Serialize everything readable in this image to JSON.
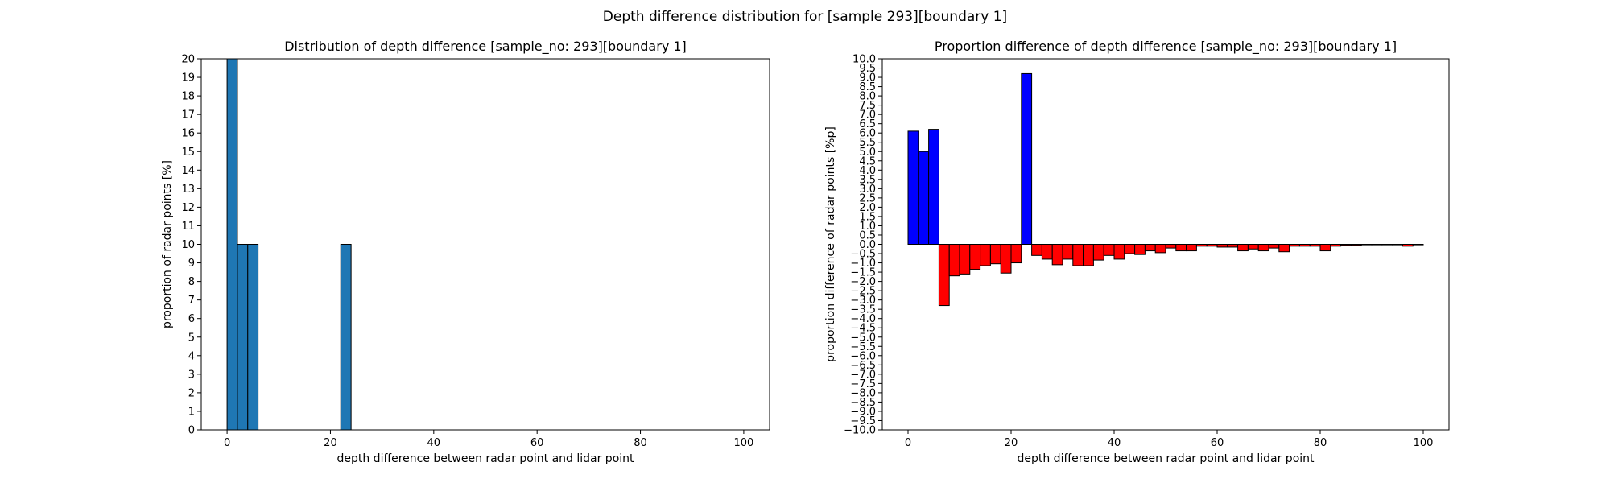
{
  "figure": {
    "title": "Depth difference distribution for [sample 293][boundary 1]"
  },
  "chart_data": [
    {
      "type": "bar",
      "title": "Distribution of depth difference [sample_no: 293][boundary 1]",
      "xlabel": "depth difference between radar point and lidar point",
      "ylabel": "proportion of radar points [%]",
      "xlim": [
        -5,
        105
      ],
      "ylim": [
        0,
        20
      ],
      "xticks": [
        0,
        20,
        40,
        60,
        80,
        100
      ],
      "xtick_labels": [
        "0",
        "20",
        "40",
        "60",
        "80",
        "100"
      ],
      "yticks": [
        0,
        1,
        2,
        3,
        4,
        5,
        6,
        7,
        8,
        9,
        10,
        11,
        12,
        13,
        14,
        15,
        16,
        17,
        18,
        19,
        20
      ],
      "ytick_labels": [
        "0",
        "1",
        "2",
        "3",
        "4",
        "5",
        "6",
        "7",
        "8",
        "9",
        "10",
        "11",
        "12",
        "13",
        "14",
        "15",
        "16",
        "17",
        "18",
        "19",
        "20"
      ],
      "bin_width": 2,
      "bar_color": "#1f77b4",
      "edge_color": "#000000",
      "grid": false,
      "bars": [
        {
          "x": 0,
          "value": 20
        },
        {
          "x": 2,
          "value": 10
        },
        {
          "x": 4,
          "value": 10
        },
        {
          "x": 22,
          "value": 10
        }
      ]
    },
    {
      "type": "bar",
      "title": "Proportion difference of depth difference [sample_no: 293][boundary 1]",
      "xlabel": "depth difference between radar point and lidar point",
      "ylabel": "proportion difference of radar points [%p]",
      "xlim": [
        -5,
        105
      ],
      "ylim": [
        -10,
        10
      ],
      "xticks": [
        0,
        20,
        40,
        60,
        80,
        100
      ],
      "xtick_labels": [
        "0",
        "20",
        "40",
        "60",
        "80",
        "100"
      ],
      "yticks": [
        10,
        9.5,
        9,
        8.5,
        8,
        7.5,
        7,
        6.5,
        6,
        5.5,
        5,
        4.5,
        4,
        3.5,
        3,
        2.5,
        2,
        1.5,
        1,
        0.5,
        0,
        -0.5,
        -1,
        -1.5,
        -2,
        -2.5,
        -3,
        -3.5,
        -4,
        -4.5,
        -5,
        -5.5,
        -6,
        -6.5,
        -7,
        -7.5,
        -8,
        -8.5,
        -9,
        -9.5,
        -10
      ],
      "ytick_labels": [
        "10.0",
        "9.5",
        "9.0",
        "8.5",
        "8.0",
        "7.5",
        "7.0",
        "6.5",
        "6.0",
        "5.5",
        "5.0",
        "4.5",
        "4.0",
        "3.5",
        "3.0",
        "2.5",
        "2.0",
        "1.5",
        "1.0",
        "0.5",
        "0.0",
        "−0.5",
        "−1.0",
        "−1.5",
        "−2.0",
        "−2.5",
        "−3.0",
        "−3.5",
        "−4.0",
        "−4.5",
        "−5.0",
        "−5.5",
        "−6.0",
        "−6.5",
        "−7.0",
        "−7.5",
        "−8.0",
        "−8.5",
        "−9.0",
        "−9.5",
        "−10.0"
      ],
      "bin_width": 2,
      "positive_color": "#0000ff",
      "negative_color": "#ff0000",
      "edge_color": "#000000",
      "grid": false,
      "bars": [
        {
          "x": 0,
          "value": 6.1
        },
        {
          "x": 2,
          "value": 5.0
        },
        {
          "x": 4,
          "value": 6.2
        },
        {
          "x": 6,
          "value": -3.3
        },
        {
          "x": 8,
          "value": -1.7
        },
        {
          "x": 10,
          "value": -1.6
        },
        {
          "x": 12,
          "value": -1.35
        },
        {
          "x": 14,
          "value": -1.15
        },
        {
          "x": 16,
          "value": -1.05
        },
        {
          "x": 18,
          "value": -1.55
        },
        {
          "x": 20,
          "value": -1.0
        },
        {
          "x": 22,
          "value": 9.2
        },
        {
          "x": 24,
          "value": -0.6
        },
        {
          "x": 26,
          "value": -0.8
        },
        {
          "x": 28,
          "value": -1.1
        },
        {
          "x": 30,
          "value": -0.8
        },
        {
          "x": 32,
          "value": -1.15
        },
        {
          "x": 34,
          "value": -1.15
        },
        {
          "x": 36,
          "value": -0.85
        },
        {
          "x": 38,
          "value": -0.6
        },
        {
          "x": 40,
          "value": -0.8
        },
        {
          "x": 42,
          "value": -0.5
        },
        {
          "x": 44,
          "value": -0.55
        },
        {
          "x": 46,
          "value": -0.35
        },
        {
          "x": 48,
          "value": -0.45
        },
        {
          "x": 50,
          "value": -0.2
        },
        {
          "x": 52,
          "value": -0.35
        },
        {
          "x": 54,
          "value": -0.35
        },
        {
          "x": 56,
          "value": -0.1
        },
        {
          "x": 58,
          "value": -0.1
        },
        {
          "x": 60,
          "value": -0.15
        },
        {
          "x": 62,
          "value": -0.15
        },
        {
          "x": 64,
          "value": -0.35
        },
        {
          "x": 66,
          "value": -0.25
        },
        {
          "x": 68,
          "value": -0.35
        },
        {
          "x": 70,
          "value": -0.2
        },
        {
          "x": 72,
          "value": -0.4
        },
        {
          "x": 74,
          "value": -0.1
        },
        {
          "x": 76,
          "value": -0.1
        },
        {
          "x": 78,
          "value": -0.1
        },
        {
          "x": 80,
          "value": -0.35
        },
        {
          "x": 82,
          "value": -0.1
        },
        {
          "x": 84,
          "value": -0.05
        },
        {
          "x": 86,
          "value": -0.05
        },
        {
          "x": 88,
          "value": -0.02
        },
        {
          "x": 90,
          "value": -0.02
        },
        {
          "x": 92,
          "value": -0.02
        },
        {
          "x": 94,
          "value": -0.02
        },
        {
          "x": 96,
          "value": -0.1
        },
        {
          "x": 98,
          "value": -0.02
        }
      ]
    }
  ]
}
